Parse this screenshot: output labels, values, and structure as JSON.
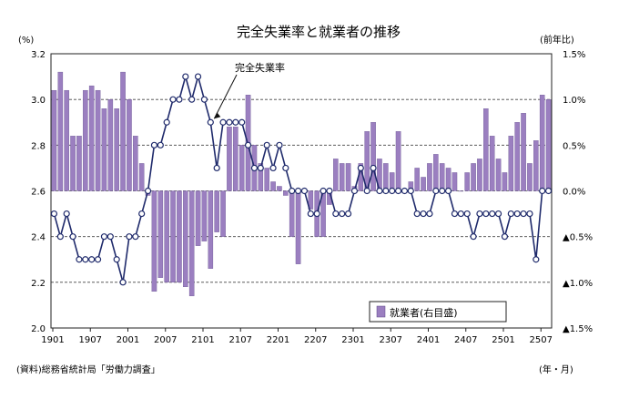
{
  "chart_data": {
    "type": "bar+line",
    "title": "完全失業率と就業者の推移",
    "left_axis_unit": "(%)",
    "right_axis_unit": "(前年比)",
    "x_unit": "(年・月)",
    "source": "(資料)総務省統計局「労働力調査」",
    "line_series_label": "完全失業率",
    "legend_label": "就業者(右目盛)",
    "legend_position": "bottom-right",
    "left_ylim": [
      2.0,
      3.2
    ],
    "left_ticks": [
      "2.0",
      "2.2",
      "2.4",
      "2.6",
      "2.8",
      "3.0",
      "3.2"
    ],
    "right_ylim": [
      -1.5,
      1.5
    ],
    "right_ticks": [
      "▲1.5%",
      "▲1.0%",
      "▲0.5%",
      "0.0%",
      "0.5%",
      "1.0%",
      "1.5%"
    ],
    "x_tick_labels": [
      "1901",
      "1907",
      "2001",
      "2007",
      "2101",
      "2107",
      "2201",
      "2207",
      "2301",
      "2307",
      "2401",
      "2407",
      "2501",
      "2507"
    ],
    "bar_color": "#9b7fc0",
    "line_color": "#1f2a6b",
    "unemployment_rate": [
      2.5,
      2.4,
      2.5,
      2.4,
      2.3,
      2.3,
      2.3,
      2.3,
      2.4,
      2.4,
      2.3,
      2.2,
      2.4,
      2.4,
      2.5,
      2.6,
      2.8,
      2.8,
      2.9,
      3.0,
      3.0,
      3.1,
      3.0,
      3.1,
      3.0,
      2.9,
      2.7,
      2.9,
      2.9,
      2.9,
      2.9,
      2.8,
      2.7,
      2.7,
      2.8,
      2.7,
      2.8,
      2.7,
      2.6,
      2.6,
      2.6,
      2.5,
      2.5,
      2.6,
      2.6,
      2.5,
      2.5,
      2.5,
      2.6,
      2.7,
      2.6,
      2.7,
      2.6,
      2.6,
      2.6,
      2.6,
      2.6,
      2.6,
      2.5,
      2.5,
      2.5,
      2.6,
      2.6,
      2.6,
      2.5,
      2.5,
      2.5,
      2.4,
      2.5,
      2.5,
      2.5,
      2.5,
      2.4,
      2.5,
      2.5,
      2.5,
      2.5,
      2.3,
      2.6,
      2.6
    ],
    "employed_yoy": [
      1.1,
      1.3,
      1.1,
      0.6,
      0.6,
      1.1,
      1.15,
      1.1,
      0.9,
      1.0,
      0.9,
      1.3,
      1.0,
      0.6,
      0.3,
      -0.05,
      -1.1,
      -0.95,
      -1.0,
      -1.0,
      -1.0,
      -1.05,
      -1.15,
      -0.6,
      -0.55,
      -0.85,
      -0.45,
      -0.5,
      0.7,
      0.7,
      0.5,
      1.05,
      0.5,
      0.3,
      0.25,
      0.1,
      0.05,
      -0.05,
      -0.5,
      -0.8,
      0.0,
      -0.2,
      -0.5,
      -0.5,
      -0.15,
      0.35,
      0.3,
      0.3,
      0.05,
      0.3,
      0.65,
      0.75,
      0.35,
      0.3,
      0.2,
      0.65,
      0.0,
      0.1,
      0.25,
      0.15,
      0.3,
      0.4,
      0.3,
      0.25,
      0.2,
      0.0,
      0.2,
      0.3,
      0.35,
      0.9,
      0.6,
      0.35,
      0.2,
      0.6,
      0.75,
      0.85,
      0.3,
      0.55,
      1.05,
      1.0
    ]
  }
}
